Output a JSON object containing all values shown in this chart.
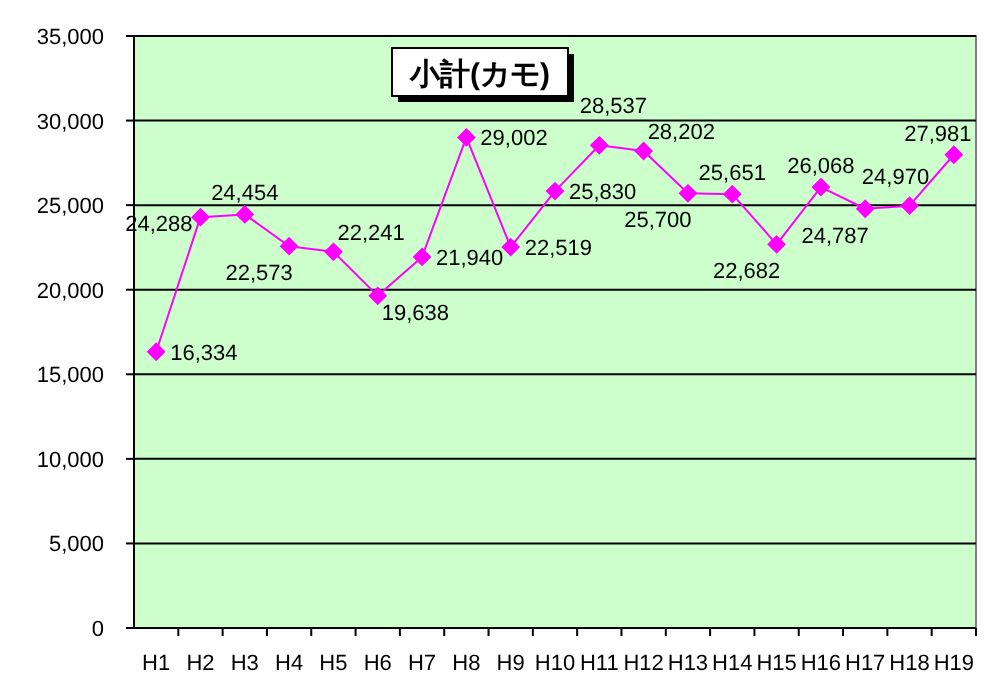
{
  "chart_data": {
    "type": "line",
    "title": "小計(カモ)",
    "categories": [
      "H1",
      "H2",
      "H3",
      "H4",
      "H5",
      "H6",
      "H7",
      "H8",
      "H9",
      "H10",
      "H11",
      "H12",
      "H13",
      "H14",
      "H15",
      "H16",
      "H17",
      "H18",
      "H19"
    ],
    "series": [
      {
        "color": "#ff00ff",
        "values": [
          16334,
          24288,
          24454,
          22573,
          22241,
          19638,
          21940,
          29002,
          22519,
          25830,
          28537,
          28202,
          25700,
          25651,
          22682,
          26068,
          24787,
          24970,
          27981
        ]
      }
    ],
    "ylim": [
      0,
      35000
    ],
    "yticks": [
      {
        "value": 0,
        "label": "0"
      },
      {
        "value": 5000,
        "label": "5,000"
      },
      {
        "value": 10000,
        "label": "10,000"
      },
      {
        "value": 15000,
        "label": "15,000"
      },
      {
        "value": 20000,
        "label": "20,000"
      },
      {
        "value": 25000,
        "label": "25,000"
      },
      {
        "value": 30000,
        "label": "30,000"
      },
      {
        "value": 35000,
        "label": "35,000"
      }
    ],
    "value_labels": [
      "16,334",
      "24,288",
      "24,454",
      "22,573",
      "22,241",
      "19,638",
      "21,940",
      "29,002",
      "22,519",
      "25,830",
      "28,537",
      "28,202",
      "25,700",
      "25,651",
      "22,682",
      "26,068",
      "24,787",
      "24,970",
      "27,981"
    ],
    "grid": "y",
    "marker": "diamond"
  }
}
